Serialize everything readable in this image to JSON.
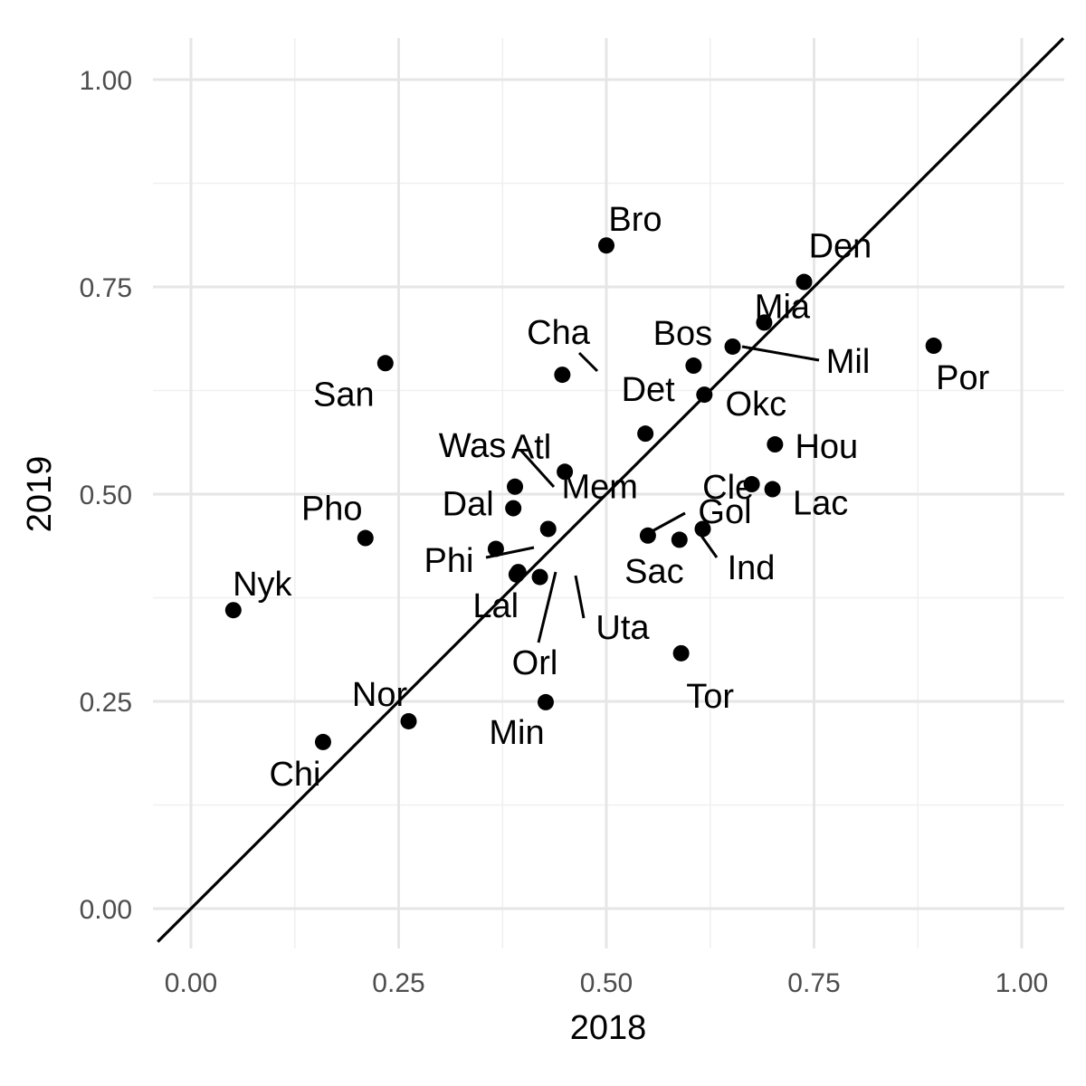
{
  "chart_data": {
    "type": "scatter",
    "title": "",
    "xlabel": "2018",
    "ylabel": "2019",
    "xlim": [
      -0.04,
      1.05
    ],
    "ylim": [
      -0.05,
      1.05
    ],
    "xticks": [
      "0.00",
      "0.25",
      "0.50",
      "0.75",
      "1.00"
    ],
    "yticks": [
      "0.00",
      "0.25",
      "0.50",
      "0.75",
      "1.00"
    ],
    "grid": true,
    "legend": "none",
    "reference_line": "y = x",
    "point_color": "#000000",
    "grid_major_color": "#e6e6e6",
    "grid_minor_color": "#f0f0f0",
    "points": [
      {
        "label": "Bro",
        "x": 0.5,
        "y": 0.8
      },
      {
        "label": "Den",
        "x": 0.738,
        "y": 0.756
      },
      {
        "label": "Mia",
        "x": 0.69,
        "y": 0.707
      },
      {
        "label": "Mil",
        "x": 0.652,
        "y": 0.678
      },
      {
        "label": "Por",
        "x": 0.894,
        "y": 0.679
      },
      {
        "label": "San",
        "x": 0.234,
        "y": 0.658
      },
      {
        "label": "Cha",
        "x": 0.447,
        "y": 0.644
      },
      {
        "label": "Bos",
        "x": 0.605,
        "y": 0.655
      },
      {
        "label": "Okc",
        "x": 0.618,
        "y": 0.62
      },
      {
        "label": "Det",
        "x": 0.547,
        "y": 0.573
      },
      {
        "label": "Hou",
        "x": 0.703,
        "y": 0.56
      },
      {
        "label": "Cle",
        "x": 0.675,
        "y": 0.512
      },
      {
        "label": "Lac",
        "x": 0.7,
        "y": 0.506
      },
      {
        "label": "Atl",
        "x": 0.45,
        "y": 0.527
      },
      {
        "label": "Was",
        "x": 0.39,
        "y": 0.509
      },
      {
        "label": "Dal",
        "x": 0.388,
        "y": 0.483
      },
      {
        "label": "Mem",
        "x": 0.43,
        "y": 0.458
      },
      {
        "label": "Gol",
        "x": 0.616,
        "y": 0.458
      },
      {
        "label": "Sac",
        "x": 0.55,
        "y": 0.45
      },
      {
        "label": "Ind",
        "x": 0.588,
        "y": 0.445
      },
      {
        "label": "Pho",
        "x": 0.21,
        "y": 0.447
      },
      {
        "label": "Phi",
        "x": 0.367,
        "y": 0.434
      },
      {
        "label": "Lal",
        "x": 0.394,
        "y": 0.406
      },
      {
        "label": "Orl",
        "x": 0.392,
        "y": 0.403
      },
      {
        "label": "Uta",
        "x": 0.42,
        "y": 0.4
      },
      {
        "label": "Nyk",
        "x": 0.051,
        "y": 0.36
      },
      {
        "label": "Tor",
        "x": 0.59,
        "y": 0.308
      },
      {
        "label": "Min",
        "x": 0.427,
        "y": 0.249
      },
      {
        "label": "Nor",
        "x": 0.262,
        "y": 0.226
      },
      {
        "label": "Chi",
        "x": 0.159,
        "y": 0.201
      }
    ]
  }
}
